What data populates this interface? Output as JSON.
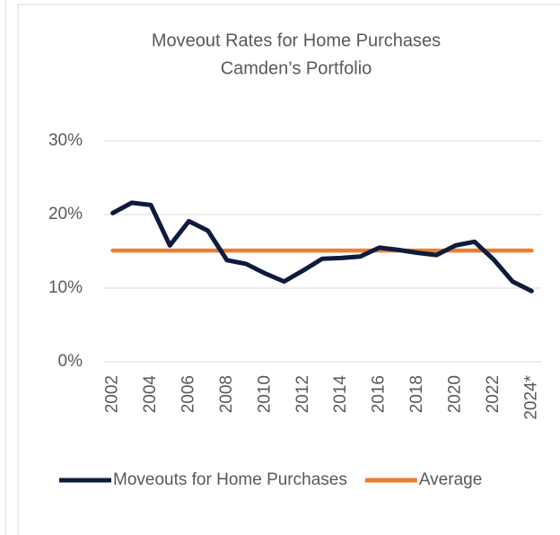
{
  "chart_data": {
    "type": "line",
    "title": "Moveout Rates for Home Purchases",
    "subtitle": "Camden’s Portfolio",
    "categories": [
      "2002",
      null,
      "2004",
      null,
      "2006",
      null,
      "2008",
      null,
      "2010",
      null,
      "2012",
      null,
      "2014",
      null,
      "2016",
      null,
      "2018",
      null,
      "2020",
      null,
      "2022",
      null,
      "2024*"
    ],
    "series": [
      {
        "name": "Moveouts for Home Purchases",
        "color": "#0d1b3e",
        "values": [
          20.2,
          21.6,
          21.3,
          15.8,
          19.1,
          17.8,
          13.8,
          13.3,
          12.0,
          10.9,
          12.4,
          14.0,
          14.1,
          14.3,
          15.5,
          15.2,
          14.8,
          14.5,
          15.8,
          16.3,
          13.9,
          10.9,
          9.6
        ]
      },
      {
        "name": "Average",
        "color": "#ed7d31",
        "values": [
          15.1,
          15.1,
          15.1,
          15.1,
          15.1,
          15.1,
          15.1,
          15.1,
          15.1,
          15.1,
          15.1,
          15.1,
          15.1,
          15.1,
          15.1,
          15.1,
          15.1,
          15.1,
          15.1,
          15.1,
          15.1,
          15.1,
          15.1
        ]
      }
    ],
    "ylim": [
      0,
      30
    ],
    "yticks": [
      {
        "value": 0,
        "label": "0%"
      },
      {
        "value": 10,
        "label": "10%"
      },
      {
        "value": 20,
        "label": "20%"
      },
      {
        "value": 30,
        "label": "30%"
      }
    ],
    "grid": true,
    "legend": "bottom"
  }
}
